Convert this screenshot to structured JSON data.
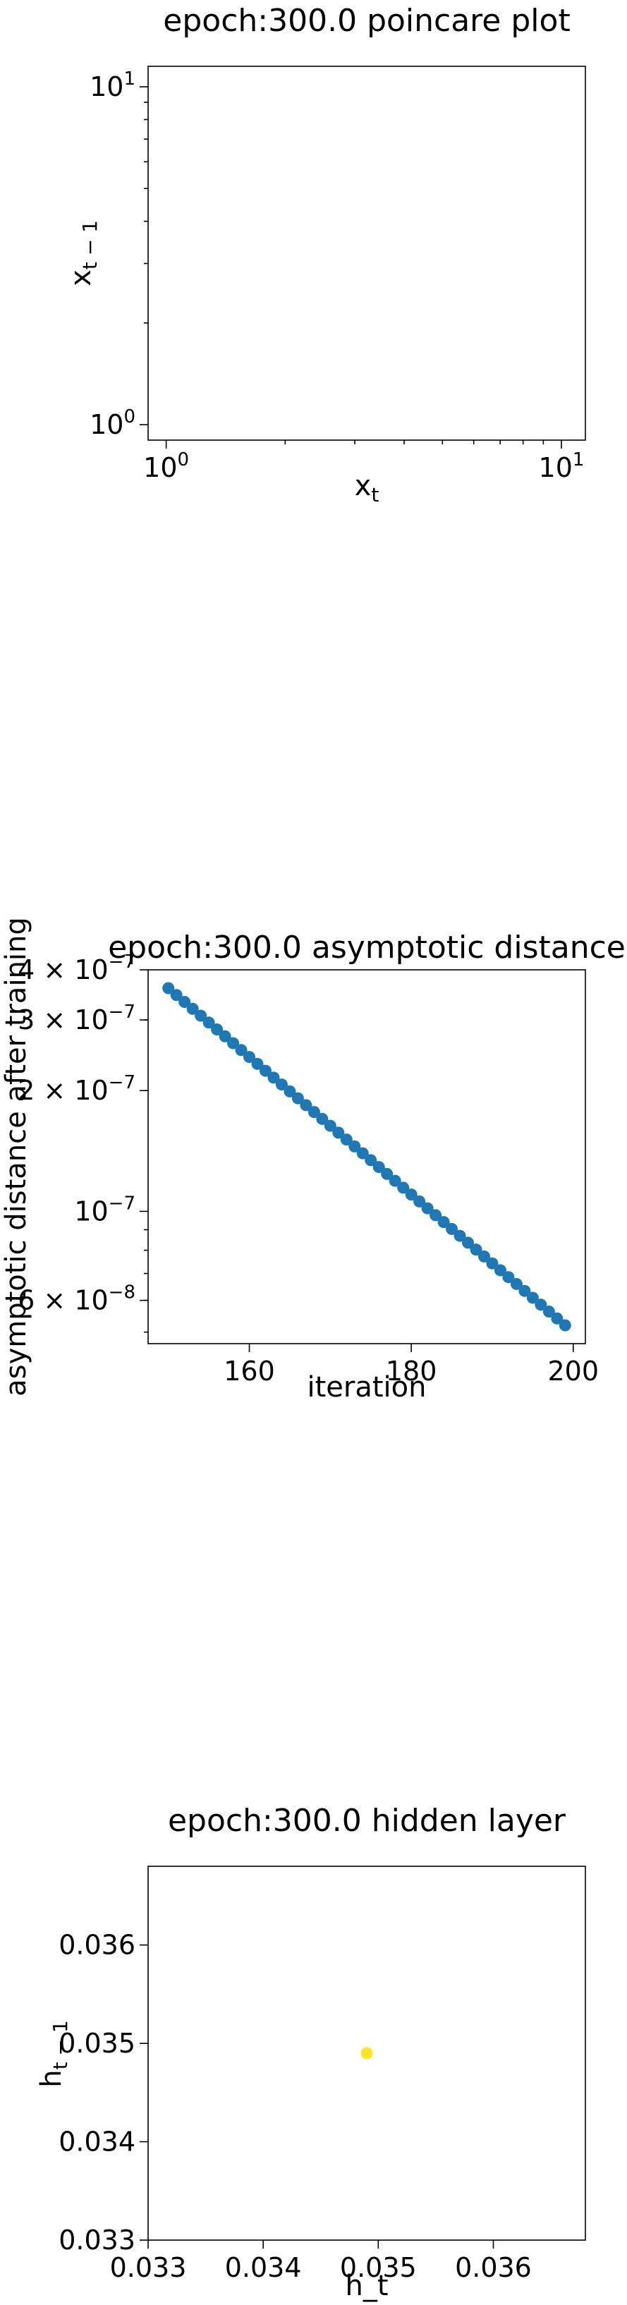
{
  "chart_data": [
    {
      "type": "scatter",
      "title": "epoch:300.0 poincare plot",
      "xlabel": "x_t",
      "ylabel": "x_{t-1}",
      "xscale": "log",
      "yscale": "log",
      "xlim": [
        0.9,
        11.5
      ],
      "ylim": [
        0.9,
        11.5
      ],
      "xticks": [
        {
          "v": 1,
          "m": "10",
          "e": "0"
        },
        {
          "v": 10,
          "m": "10",
          "e": "1"
        }
      ],
      "yticks": [
        {
          "v": 1,
          "m": "10",
          "e": "0"
        },
        {
          "v": 10,
          "m": "10",
          "e": "1"
        }
      ],
      "points": [],
      "grid": false
    },
    {
      "type": "scatter",
      "title": "epoch:300.0 asymptotic distance",
      "xlabel": "iteration",
      "ylabel": "asymptotic distance after training",
      "xscale": "linear",
      "yscale": "log",
      "xlim": [
        147.5,
        201.5
      ],
      "ylim": [
        4.68e-08,
        4e-07
      ],
      "xticks": [
        {
          "v": 160,
          "label": "160"
        },
        {
          "v": 180,
          "label": "180"
        },
        {
          "v": 200,
          "label": "200"
        }
      ],
      "yticks": [
        {
          "v": 4e-07,
          "m": "4 × 10",
          "e": "−7"
        },
        {
          "v": 3e-07,
          "m": "3 × 10",
          "e": "−7"
        },
        {
          "v": 2e-07,
          "m": "2 × 10",
          "e": "−7"
        },
        {
          "v": 1e-07,
          "m": "10",
          "e": "−7"
        },
        {
          "v": 6e-08,
          "m": "6 × 10",
          "e": "−8"
        }
      ],
      "x_start": 150,
      "x_end": 199,
      "y_start": 3.6e-07,
      "y_end": 5.2e-08,
      "color": "#1f77b4",
      "grid": false
    },
    {
      "type": "scatter",
      "title": "epoch:300.0 hidden layer",
      "xlabel": "h_t",
      "ylabel": "h_{t-1}",
      "xscale": "linear",
      "yscale": "linear",
      "xlim": [
        0.033,
        0.0368
      ],
      "ylim": [
        0.033,
        0.0368
      ],
      "xticks": [
        {
          "v": 0.033,
          "label": "0.033"
        },
        {
          "v": 0.034,
          "label": "0.034"
        },
        {
          "v": 0.035,
          "label": "0.035"
        },
        {
          "v": 0.036,
          "label": "0.036"
        }
      ],
      "yticks": [
        {
          "v": 0.033,
          "label": "0.033"
        },
        {
          "v": 0.034,
          "label": "0.034"
        },
        {
          "v": 0.035,
          "label": "0.035"
        },
        {
          "v": 0.036,
          "label": "0.036"
        }
      ],
      "points": [
        {
          "x": 0.0349,
          "y": 0.0349
        }
      ],
      "color": "#fde725",
      "grid": false
    }
  ]
}
